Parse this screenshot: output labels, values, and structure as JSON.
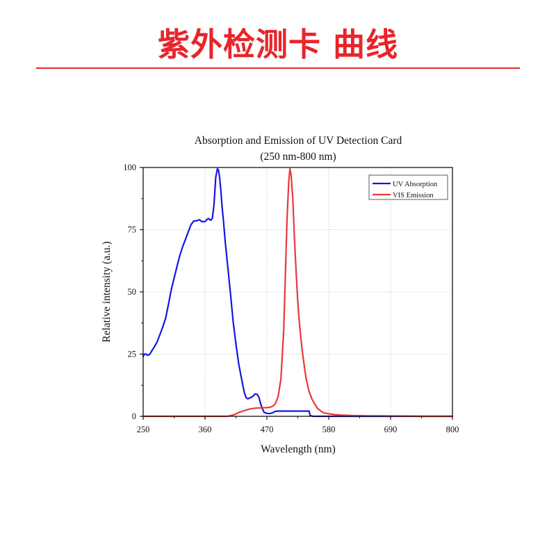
{
  "header": {
    "title": "紫外检测卡 曲线",
    "accent_color": "#e8252a"
  },
  "chart_data": {
    "type": "line",
    "title": "Absorption and Emission of UV Detection Card",
    "subtitle": "(250 nm-800 nm)",
    "xlabel": "Wavelength (nm)",
    "ylabel": "Relative intensity (a.u.)",
    "xlim": [
      250,
      800
    ],
    "ylim": [
      0,
      100
    ],
    "xticks": [
      250,
      360,
      470,
      580,
      690,
      800
    ],
    "yticks": [
      0,
      25,
      50,
      75,
      100
    ],
    "grid": true,
    "legend_position": "top-right",
    "series": [
      {
        "name": "UV Absorption",
        "color": "#1515e6",
        "x": [
          250,
          252,
          255,
          258,
          262,
          266,
          270,
          275,
          280,
          285,
          290,
          295,
          300,
          305,
          310,
          315,
          320,
          325,
          330,
          335,
          340,
          345,
          350,
          355,
          360,
          363,
          366,
          370,
          373,
          376,
          379,
          382,
          384,
          386,
          388,
          390,
          393,
          396,
          400,
          405,
          410,
          415,
          420,
          425,
          430,
          433,
          436,
          440,
          445,
          449,
          453,
          456,
          459,
          462,
          465,
          470,
          475,
          480,
          485,
          490,
          500,
          520,
          540,
          545,
          547,
          552,
          560,
          600,
          650,
          700,
          800
        ],
        "values": [
          24,
          25,
          25,
          24.5,
          25,
          26.5,
          28,
          30,
          33,
          36,
          39.5,
          45,
          51,
          55.5,
          60,
          64.5,
          68,
          71,
          74,
          77,
          78.5,
          78.6,
          79,
          78.2,
          78.3,
          79,
          79.5,
          78.8,
          79.5,
          85,
          96,
          99.5,
          99,
          96,
          91,
          85,
          78,
          70,
          61,
          50,
          38,
          29,
          21,
          15,
          9.5,
          7.5,
          7,
          7.4,
          8,
          9,
          8.8,
          7.5,
          5,
          3,
          1.6,
          1.2,
          1.1,
          1.4,
          2,
          2.1,
          2.1,
          2.1,
          2.1,
          2.1,
          0.3,
          0,
          0,
          0,
          0,
          0,
          0
        ]
      },
      {
        "name": "VIS Emission",
        "color": "#e8383a",
        "x": [
          250,
          300,
          350,
          400,
          410,
          420,
          430,
          440,
          450,
          460,
          470,
          475,
          480,
          485,
          490,
          495,
          500,
          503,
          506,
          509,
          511,
          513,
          516,
          519,
          522,
          525,
          528,
          532,
          536,
          540,
          545,
          550,
          555,
          560,
          565,
          570,
          575,
          580,
          590,
          600,
          620,
          650,
          700,
          750,
          800
        ],
        "values": [
          0,
          0,
          0,
          0,
          0.5,
          1.5,
          2.3,
          3,
          3.3,
          3.4,
          3.5,
          3.6,
          4,
          5,
          8,
          15,
          35,
          58,
          80,
          95,
          99.5,
          97,
          88,
          72,
          58,
          46,
          37,
          28,
          21,
          15,
          10,
          7,
          5,
          3.2,
          2.3,
          1.5,
          1.2,
          1,
          0.7,
          0.5,
          0.3,
          0.2,
          0.1,
          0,
          0
        ]
      }
    ]
  }
}
